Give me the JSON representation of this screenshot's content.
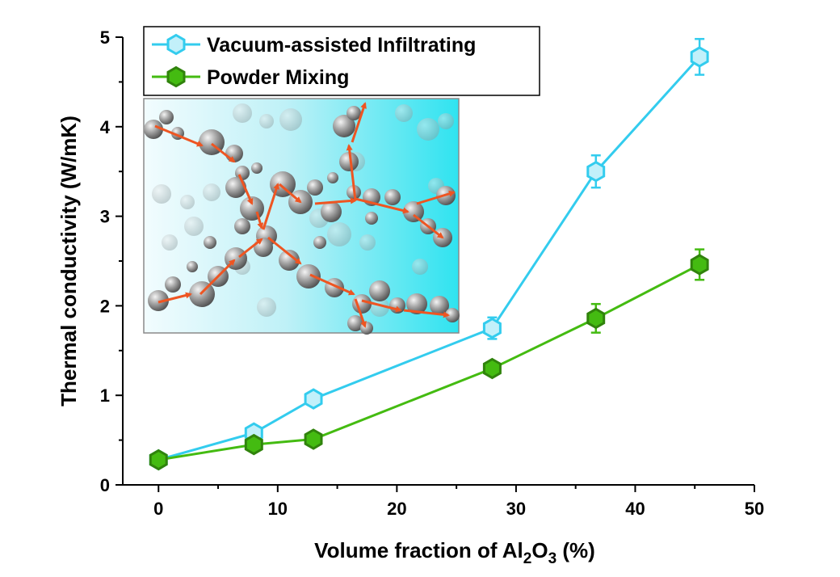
{
  "chart_data": {
    "type": "line",
    "title": "",
    "xlabel": "Volume fraction of Al2O3 (%)",
    "xlabel_parts": {
      "before": "Volume fraction of Al",
      "sub1": "2",
      "mid": "O",
      "sub2": "3",
      "after": " (%)"
    },
    "ylabel": "Thermal conductivity (W/mK)",
    "xlim": [
      -3,
      50
    ],
    "ylim": [
      0,
      5
    ],
    "xticks": [
      "0",
      "10",
      "20",
      "30",
      "40",
      "50"
    ],
    "yticks": [
      "0",
      "1",
      "2",
      "3",
      "4",
      "5"
    ],
    "grid": false,
    "legend_position": "top-left",
    "series": [
      {
        "name": "Vacuum-assisted Infiltrating",
        "color": "#33ccee",
        "x": [
          0,
          8,
          13,
          28,
          36.7,
          45.4
        ],
        "y": [
          0.28,
          0.58,
          0.96,
          1.75,
          3.5,
          4.78
        ],
        "err": [
          0.05,
          0.05,
          0.05,
          0.12,
          0.18,
          0.2
        ]
      },
      {
        "name": "Powder Mixing",
        "color": "#44bb11",
        "x": [
          0,
          8,
          13,
          28,
          36.7,
          45.4
        ],
        "y": [
          0.28,
          0.45,
          0.51,
          1.3,
          1.86,
          2.46
        ],
        "err": [
          0.04,
          0.04,
          0.04,
          0.05,
          0.16,
          0.17
        ]
      }
    ]
  }
}
